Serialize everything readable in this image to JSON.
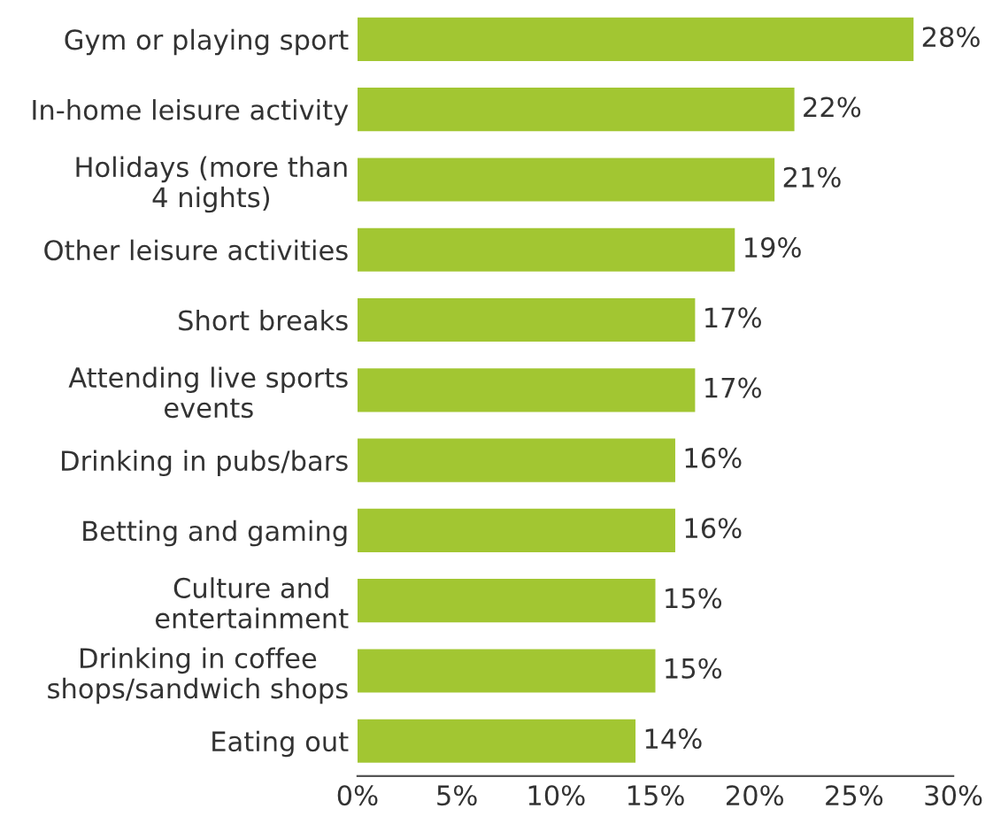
{
  "chart_data": {
    "type": "bar",
    "orientation": "horizontal",
    "categories": [
      "Gym or playing sport",
      "In-home leisure activity",
      "Holidays (more than\n4 nights)",
      "Other leisure activities",
      "Short breaks",
      "Attending live sports\nevents",
      "Drinking in pubs/bars",
      "Betting and gaming",
      "Culture and\nentertainment",
      "Drinking in coffee\nshops/sandwich shops",
      "Eating out"
    ],
    "values": [
      28,
      22,
      21,
      19,
      17,
      17,
      16,
      16,
      15,
      15,
      14
    ],
    "value_labels": [
      "28%",
      "22%",
      "21%",
      "19%",
      "17%",
      "17%",
      "16%",
      "16%",
      "15%",
      "15%",
      "14%"
    ],
    "color": "#a2c632",
    "xlim": [
      0,
      30
    ],
    "xticks": [
      {
        "value": 0,
        "label": "0%"
      },
      {
        "value": 5,
        "label": "5%"
      },
      {
        "value": 10,
        "label": "10%"
      },
      {
        "value": 15,
        "label": "15%"
      },
      {
        "value": 20,
        "label": "20%"
      },
      {
        "value": 25,
        "label": "25%"
      },
      {
        "value": 30,
        "label": "30%"
      }
    ],
    "grid": false
  }
}
